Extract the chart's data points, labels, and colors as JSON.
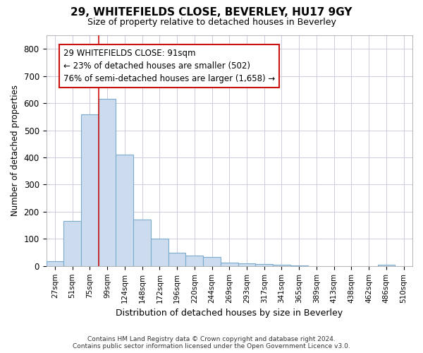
{
  "title": "29, WHITEFIELDS CLOSE, BEVERLEY, HU17 9GY",
  "subtitle": "Size of property relative to detached houses in Beverley",
  "xlabel": "Distribution of detached houses by size in Beverley",
  "ylabel": "Number of detached properties",
  "bar_labels": [
    "27sqm",
    "51sqm",
    "75sqm",
    "99sqm",
    "124sqm",
    "148sqm",
    "172sqm",
    "196sqm",
    "220sqm",
    "244sqm",
    "269sqm",
    "293sqm",
    "317sqm",
    "341sqm",
    "365sqm",
    "389sqm",
    "413sqm",
    "438sqm",
    "462sqm",
    "486sqm",
    "510sqm"
  ],
  "bar_values": [
    18,
    165,
    560,
    615,
    410,
    170,
    100,
    50,
    38,
    33,
    12,
    10,
    7,
    4,
    2,
    0,
    0,
    0,
    0,
    5,
    0
  ],
  "bar_color": "#ccdcee",
  "bar_edge_color": "#7aaace",
  "vline_color": "#cc1111",
  "vline_pos": 2.5,
  "annotation_line1": "29 WHITEFIELDS CLOSE: 91sqm",
  "annotation_line2": "← 23% of detached houses are smaller (502)",
  "annotation_line3": "76% of semi-detached houses are larger (1,658) →",
  "annotation_box_facecolor": "#ffffff",
  "annotation_box_edgecolor": "#cc1111",
  "ylim": [
    0,
    850
  ],
  "yticks": [
    0,
    100,
    200,
    300,
    400,
    500,
    600,
    700,
    800
  ],
  "footer_line1": "Contains HM Land Registry data © Crown copyright and database right 2024.",
  "footer_line2": "Contains public sector information licensed under the Open Government Licence v3.0.",
  "bg_color": "#ffffff",
  "plot_bg_color": "#ffffff",
  "grid_color": "#ccccdd"
}
